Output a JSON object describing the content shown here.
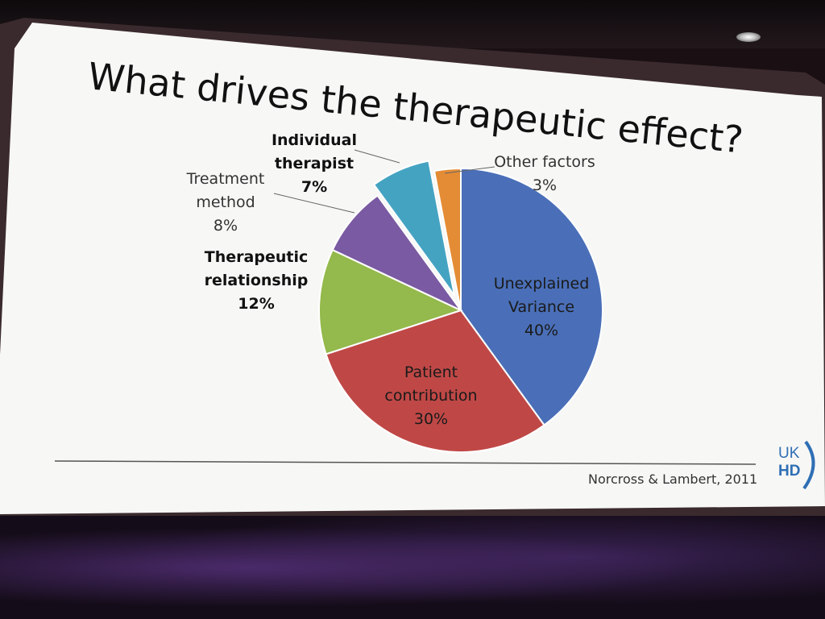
{
  "slide": {
    "title": "What drives the therapeutic effect?",
    "citation": "Norcross & Lambert, 2011",
    "logo_top": "UK",
    "logo_bottom": "HD"
  },
  "chart_data": {
    "type": "pie",
    "title": "What drives the therapeutic effect?",
    "slices": [
      {
        "label": [
          "Unexplained",
          "Variance"
        ],
        "value": 40,
        "value_label": "40%",
        "color": "#4a6fb8",
        "bold": false,
        "exploded": false
      },
      {
        "label": [
          "Patient",
          "contribution"
        ],
        "value": 30,
        "value_label": "30%",
        "color": "#bf4846",
        "bold": false,
        "exploded": false
      },
      {
        "label": [
          "Therapeutic",
          "relationship"
        ],
        "value": 12,
        "value_label": "12%",
        "color": "#94b94c",
        "bold": true,
        "exploded": false
      },
      {
        "label": [
          "Treatment",
          "method"
        ],
        "value": 8,
        "value_label": "8%",
        "color": "#7a5aa2",
        "bold": false,
        "exploded": false
      },
      {
        "label": [
          "Individual",
          "therapist"
        ],
        "value": 7,
        "value_label": "7%",
        "color": "#45a3c2",
        "bold": true,
        "exploded": true
      },
      {
        "label": [
          "Other factors"
        ],
        "value": 3,
        "value_label": "3%",
        "color": "#e48c35",
        "bold": false,
        "exploded": false
      }
    ],
    "start_angle_deg": 0,
    "direction": "clockwise"
  },
  "colors": {
    "slide_bg": "#f7f7f5",
    "divider": "#555555",
    "logo": "#2f6fb5"
  }
}
